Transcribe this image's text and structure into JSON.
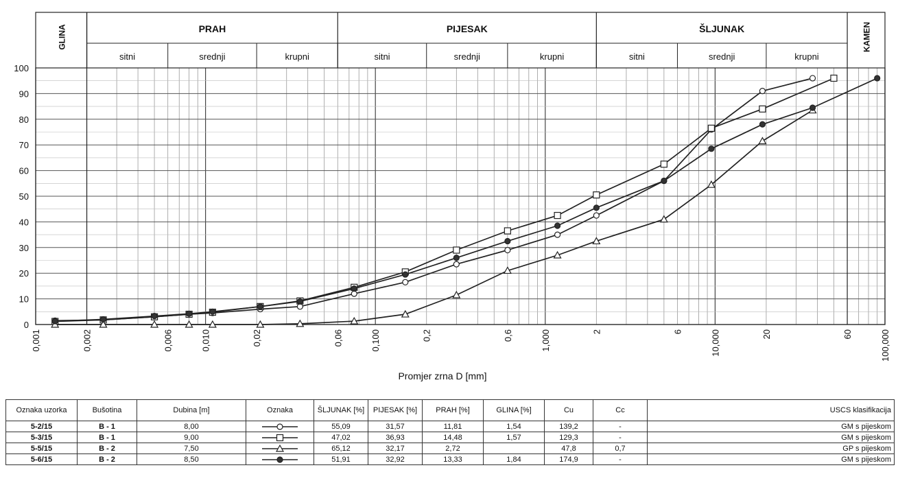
{
  "chart_data": {
    "type": "line",
    "x_scale": "log",
    "xlabel": "Promjer zrna D [mm]",
    "ylabel": "",
    "xlim": [
      0.001,
      100
    ],
    "ylim": [
      0,
      100
    ],
    "y_ticks": [
      "0",
      "10",
      "20",
      "30",
      "40",
      "50",
      "60",
      "70",
      "80",
      "90",
      "100"
    ],
    "x_tick_labels": [
      {
        "v": 0.001,
        "t": "0,001"
      },
      {
        "v": 0.002,
        "t": "0,002"
      },
      {
        "v": 0.006,
        "t": "0,006"
      },
      {
        "v": 0.01,
        "t": "0,010"
      },
      {
        "v": 0.02,
        "t": "0,02"
      },
      {
        "v": 0.06,
        "t": "0,06"
      },
      {
        "v": 0.1,
        "t": "0,100"
      },
      {
        "v": 0.2,
        "t": "0,2"
      },
      {
        "v": 0.6,
        "t": "0,6"
      },
      {
        "v": 1,
        "t": "1,000"
      },
      {
        "v": 2,
        "t": "2"
      },
      {
        "v": 6,
        "t": "6"
      },
      {
        "v": 10,
        "t": "10,000"
      },
      {
        "v": 20,
        "t": "20"
      },
      {
        "v": 60,
        "t": "60"
      },
      {
        "v": 100,
        "t": "100,000"
      }
    ],
    "grid": true,
    "classes": {
      "glina": "GLINA",
      "kamen": "KAMEN",
      "main": [
        {
          "label": "PRAH",
          "from": 0.002,
          "to": 0.06
        },
        {
          "label": "PIJESAK",
          "from": 0.06,
          "to": 2
        },
        {
          "label": "ŠLJUNAK",
          "from": 2,
          "to": 60
        }
      ],
      "sub": [
        {
          "label": "sitni",
          "from": 0.002,
          "to": 0.006
        },
        {
          "label": "srednji",
          "from": 0.006,
          "to": 0.02
        },
        {
          "label": "krupni",
          "from": 0.02,
          "to": 0.06
        },
        {
          "label": "sitni",
          "from": 0.06,
          "to": 0.2
        },
        {
          "label": "srednji",
          "from": 0.2,
          "to": 0.6
        },
        {
          "label": "krupni",
          "from": 0.6,
          "to": 2
        },
        {
          "label": "sitni",
          "from": 2,
          "to": 6
        },
        {
          "label": "srednji",
          "from": 6,
          "to": 20
        },
        {
          "label": "krupni",
          "from": 20,
          "to": 60
        }
      ]
    },
    "series": [
      {
        "name": "5-2/15",
        "marker": "circle-open",
        "points": [
          [
            0.0013,
            1.5
          ],
          [
            0.0025,
            1.8
          ],
          [
            0.005,
            3
          ],
          [
            0.008,
            4
          ],
          [
            0.011,
            4.5
          ],
          [
            0.021,
            6
          ],
          [
            0.036,
            7
          ],
          [
            0.075,
            12
          ],
          [
            0.15,
            16.5
          ],
          [
            0.3,
            23.5
          ],
          [
            0.6,
            29
          ],
          [
            1.18,
            35
          ],
          [
            2,
            42.5
          ],
          [
            5,
            56
          ],
          [
            9.5,
            76
          ],
          [
            19,
            91
          ],
          [
            37.5,
            96
          ]
        ]
      },
      {
        "name": "5-3/15",
        "marker": "square-open",
        "points": [
          [
            0.0013,
            1.2
          ],
          [
            0.0025,
            1.8
          ],
          [
            0.005,
            3
          ],
          [
            0.008,
            4
          ],
          [
            0.011,
            4.8
          ],
          [
            0.021,
            7
          ],
          [
            0.036,
            9.2
          ],
          [
            0.075,
            14.5
          ],
          [
            0.15,
            20.5
          ],
          [
            0.3,
            29
          ],
          [
            0.6,
            36.5
          ],
          [
            1.18,
            42.5
          ],
          [
            2,
            50.5
          ],
          [
            5,
            62.5
          ],
          [
            9.5,
            76.5
          ],
          [
            19,
            84
          ],
          [
            50,
            96
          ]
        ]
      },
      {
        "name": "5-5/15",
        "marker": "triangle-open",
        "points": [
          [
            0.0013,
            0
          ],
          [
            0.0025,
            0
          ],
          [
            0.005,
            0
          ],
          [
            0.008,
            0
          ],
          [
            0.011,
            0
          ],
          [
            0.021,
            0
          ],
          [
            0.036,
            0.3
          ],
          [
            0.075,
            1.3
          ],
          [
            0.15,
            4
          ],
          [
            0.3,
            11.5
          ],
          [
            0.6,
            21
          ],
          [
            1.18,
            27
          ],
          [
            2,
            32.5
          ],
          [
            5,
            41
          ],
          [
            9.5,
            54.5
          ],
          [
            19,
            71.5
          ],
          [
            37.5,
            83.5
          ]
        ]
      },
      {
        "name": "5-6/15",
        "marker": "circle-filled",
        "points": [
          [
            0.0013,
            1.3
          ],
          [
            0.0025,
            2
          ],
          [
            0.005,
            3.3
          ],
          [
            0.008,
            4.2
          ],
          [
            0.011,
            5
          ],
          [
            0.021,
            7
          ],
          [
            0.036,
            9
          ],
          [
            0.075,
            14
          ],
          [
            0.15,
            19.5
          ],
          [
            0.3,
            26
          ],
          [
            0.6,
            32.5
          ],
          [
            1.18,
            38.5
          ],
          [
            2,
            45.5
          ],
          [
            5,
            56
          ],
          [
            9.5,
            68.5
          ],
          [
            19,
            78
          ],
          [
            37.5,
            84.5
          ],
          [
            90,
            96
          ]
        ]
      }
    ]
  },
  "table": {
    "headers": [
      "Oznaka uzorka",
      "Bušotina",
      "Dubina [m]",
      "Oznaka",
      "ŠLJUNAK [%]",
      "PIJESAK [%]",
      "PRAH [%]",
      "GLINA [%]",
      "Cu",
      "Cc",
      "USCS klasifikacija"
    ],
    "rows": [
      {
        "oznaka_uzorka": "5-2/15",
        "busotina": "B - 1",
        "dubina": "8,00",
        "marker": "circle-open",
        "sljunak": "55,09",
        "pijesak": "31,57",
        "prah": "11,81",
        "glina": "1,54",
        "cu": "139,2",
        "cc": "-",
        "uscs": "GM s pijeskom"
      },
      {
        "oznaka_uzorka": "5-3/15",
        "busotina": "B - 1",
        "dubina": "9,00",
        "marker": "square-open",
        "sljunak": "47,02",
        "pijesak": "36,93",
        "prah": "14,48",
        "glina": "1,57",
        "cu": "129,3",
        "cc": "-",
        "uscs": "GM s pijeskom"
      },
      {
        "oznaka_uzorka": "5-5/15",
        "busotina": "B - 2",
        "dubina": "7,50",
        "marker": "triangle-open",
        "sljunak": "65,12",
        "pijesak": "32,17",
        "prah": "2,72",
        "glina": "",
        "cu": "47,8",
        "cc": "0,7",
        "uscs": "GP s pijeskom"
      },
      {
        "oznaka_uzorka": "5-6/15",
        "busotina": "B - 2",
        "dubina": "8,50",
        "marker": "circle-filled",
        "sljunak": "51,91",
        "pijesak": "32,92",
        "prah": "13,33",
        "glina": "1,84",
        "cu": "174,9",
        "cc": "-",
        "uscs": "GM s pijeskom"
      }
    ]
  }
}
